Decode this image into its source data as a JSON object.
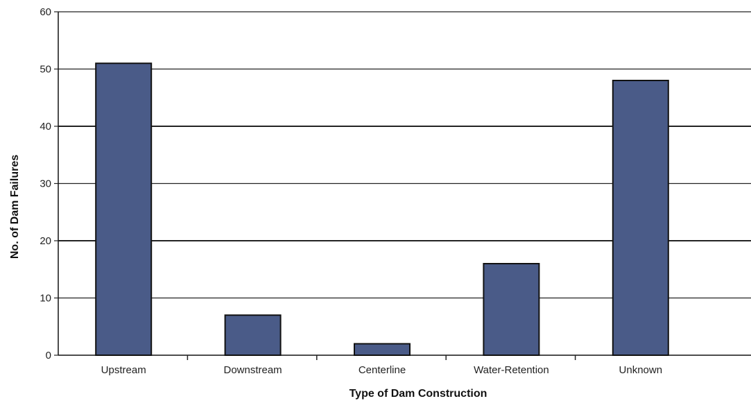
{
  "chart_data": {
    "type": "bar",
    "title": "",
    "xlabel": "Type of Dam Construction",
    "ylabel": "No. of Dam Failures",
    "categories": [
      "Upstream",
      "Downstream",
      "Centerline",
      "Water-Retention",
      "Unknown"
    ],
    "values": [
      51,
      7,
      2,
      16,
      48
    ],
    "ylim": [
      0,
      60
    ],
    "yticks": [
      0,
      10,
      20,
      30,
      40,
      50,
      60
    ],
    "grid": true,
    "bar_color": "#4a5b88",
    "bar_edge_color": "#111111"
  }
}
